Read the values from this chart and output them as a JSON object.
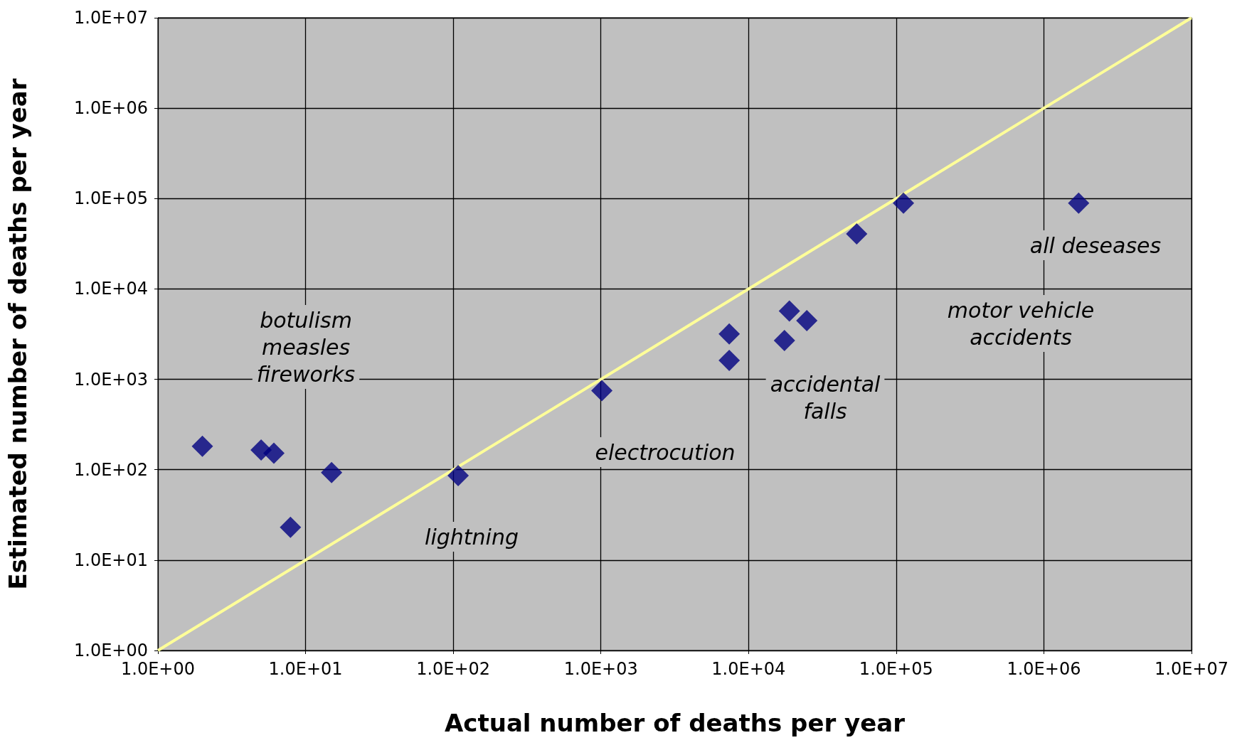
{
  "chart_data": {
    "type": "scatter",
    "xlabel": "Actual number of deaths per year",
    "ylabel": "Estimated number of deaths per year",
    "log": "xy",
    "grid": true,
    "marker": "diamond",
    "xlim": [
      1,
      10000000
    ],
    "ylim": [
      1,
      10000000
    ],
    "xticks": [
      {
        "value": 1,
        "label": "1.0E+00"
      },
      {
        "value": 10,
        "label": "1.0E+01"
      },
      {
        "value": 100,
        "label": "1.0E+02"
      },
      {
        "value": 1000,
        "label": "1.0E+03"
      },
      {
        "value": 10000,
        "label": "1.0E+04"
      },
      {
        "value": 100000,
        "label": "1.0E+05"
      },
      {
        "value": 1000000,
        "label": "1.0E+06"
      },
      {
        "value": 10000000,
        "label": "1.0E+07"
      }
    ],
    "yticks": [
      {
        "value": 1,
        "label": "1.0E+00"
      },
      {
        "value": 10,
        "label": "1.0E+01"
      },
      {
        "value": 100,
        "label": "1.0E+02"
      },
      {
        "value": 1000,
        "label": "1.0E+03"
      },
      {
        "value": 10000,
        "label": "1.0E+04"
      },
      {
        "value": 100000,
        "label": "1.0E+05"
      },
      {
        "value": 1000000,
        "label": "1.0E+06"
      },
      {
        "value": 10000000,
        "label": "1.0E+07"
      }
    ],
    "series": [
      {
        "type": "line",
        "color": "#ffff99",
        "marker": "none",
        "line_style": "solid",
        "x": [
          1,
          10000000
        ],
        "values": [
          1,
          10000000
        ]
      },
      {
        "color": "#000080",
        "x": [
          2,
          5,
          6.1,
          7.9,
          15,
          108,
          1015,
          7400,
          7400,
          17500,
          18900,
          24800,
          54000,
          112000,
          1720000
        ],
        "values": [
          182,
          165,
          152,
          23,
          93,
          86,
          750,
          3170,
          1620,
          2690,
          5690,
          4470,
          40600,
          89000,
          89000
        ]
      }
    ],
    "annotations": [
      "botulism\nmeasles\nfireworks",
      "lightning",
      "electrocution",
      "accidental\nfalls",
      "motor vehicle\naccidents",
      "all deseases"
    ]
  }
}
